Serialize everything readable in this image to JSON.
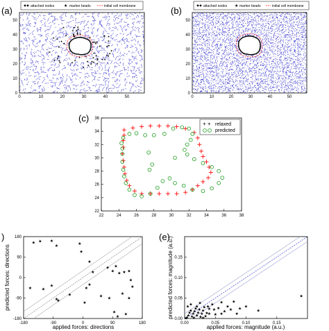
{
  "panels": {
    "a": {
      "label": "(a)",
      "legend": [
        "attached nodes",
        "marker beads",
        "initial cell membrane"
      ],
      "x_ticks": [
        "0",
        "10",
        "20",
        "30",
        "40",
        "50"
      ],
      "y_ticks": [
        "0",
        "10",
        "20",
        "30",
        "40",
        "50"
      ],
      "mesh_color": "#1515c8",
      "bead_color": "#1aa89a",
      "membrane_color": "#ff2020"
    },
    "b": {
      "label": "(b)",
      "legend": [
        "attached nodes",
        "marker beads",
        "initial cell membrane"
      ],
      "x_ticks": [
        "0",
        "10",
        "20",
        "30",
        "40",
        "50"
      ],
      "y_ticks": [
        "0",
        "10",
        "20",
        "30",
        "40",
        "50"
      ],
      "mesh_color": "#1515c8"
    },
    "c": {
      "label": "(c)"
    },
    "d": {
      "label": ")"
    },
    "e": {
      "label": "(e)"
    }
  },
  "chart_data": [
    {
      "panel": "c",
      "type": "scatter",
      "xlim": [
        22,
        38
      ],
      "ylim": [
        22,
        36
      ],
      "x_ticks": [
        "22",
        "24",
        "26",
        "28",
        "30",
        "32",
        "34",
        "36",
        "38"
      ],
      "y_ticks": [
        "22",
        "24",
        "26",
        "28",
        "30",
        "32",
        "34",
        "36"
      ],
      "legend_position": "top-right",
      "series": [
        {
          "name": "relaxed",
          "color": "#ff2020",
          "marker": "plus",
          "points": [
            [
              24.6,
              34.2
            ],
            [
              25.6,
              34.5
            ],
            [
              26.6,
              34.7
            ],
            [
              27.6,
              34.8
            ],
            [
              28.6,
              34.8
            ],
            [
              29.6,
              34.8
            ],
            [
              30.6,
              34.7
            ],
            [
              31.6,
              34.4
            ],
            [
              32.6,
              33.8
            ],
            [
              33.0,
              33.0
            ],
            [
              33.2,
              32.0
            ],
            [
              33.4,
              31.0
            ],
            [
              33.6,
              30.2
            ],
            [
              34.0,
              29.4
            ],
            [
              34.3,
              28.6
            ],
            [
              34.5,
              27.8
            ],
            [
              34.2,
              27.0
            ],
            [
              33.6,
              26.4
            ],
            [
              33.0,
              25.8
            ],
            [
              32.4,
              25.2
            ],
            [
              31.6,
              24.8
            ],
            [
              30.6,
              24.6
            ],
            [
              29.6,
              24.6
            ],
            [
              28.6,
              24.6
            ],
            [
              27.6,
              24.6
            ],
            [
              26.6,
              24.6
            ],
            [
              25.8,
              25.0
            ],
            [
              25.2,
              25.8
            ],
            [
              24.9,
              26.6
            ],
            [
              24.7,
              27.6
            ],
            [
              24.6,
              28.6
            ],
            [
              24.5,
              29.6
            ],
            [
              24.4,
              30.6
            ],
            [
              24.5,
              31.6
            ],
            [
              24.5,
              32.6
            ],
            [
              24.6,
              33.4
            ]
          ]
        },
        {
          "name": "predicted",
          "color": "#1a9a1a",
          "marker": "circle",
          "points": [
            [
              24.3,
              32.2
            ],
            [
              24.5,
              33.0
            ],
            [
              25.2,
              33.6
            ],
            [
              26.0,
              33.7
            ],
            [
              27.0,
              33.4
            ],
            [
              28.0,
              33.4
            ],
            [
              29.2,
              33.6
            ],
            [
              30.2,
              34.4
            ],
            [
              31.2,
              34.6
            ],
            [
              32.0,
              34.4
            ],
            [
              32.4,
              33.6
            ],
            [
              32.2,
              32.7
            ],
            [
              31.8,
              32.0
            ],
            [
              31.5,
              31.2
            ],
            [
              31.8,
              30.5
            ],
            [
              32.6,
              29.8
            ],
            [
              33.6,
              29.2
            ],
            [
              34.6,
              28.6
            ],
            [
              35.4,
              28.0
            ],
            [
              35.8,
              27.0
            ],
            [
              35.4,
              26.2
            ],
            [
              34.6,
              25.4
            ],
            [
              33.6,
              25.0
            ],
            [
              32.4,
              25.2
            ],
            [
              31.4,
              25.8
            ],
            [
              30.4,
              26.2
            ],
            [
              29.8,
              26.9
            ],
            [
              29.0,
              26.5
            ],
            [
              28.4,
              25.5
            ],
            [
              27.6,
              24.6
            ],
            [
              26.6,
              24.2
            ],
            [
              25.8,
              24.4
            ],
            [
              25.2,
              25.2
            ],
            [
              24.8,
              26.2
            ],
            [
              24.6,
              27.2
            ],
            [
              24.5,
              28.2
            ],
            [
              24.4,
              29.4
            ],
            [
              24.4,
              30.6
            ],
            [
              24.4,
              31.4
            ],
            [
              27.4,
              30.8
            ],
            [
              27.8,
              29.0
            ],
            [
              27.5,
              28.2
            ],
            [
              30.4,
              30.0
            ]
          ]
        }
      ]
    },
    {
      "panel": "d",
      "type": "scatter",
      "xlim": [
        -180,
        180
      ],
      "ylim": [
        -180,
        180
      ],
      "x_ticks": [
        "-180",
        "-90",
        "0",
        "90",
        "180"
      ],
      "y_ticks": [
        "-180",
        "-90",
        "0",
        "90",
        "180"
      ],
      "xlabel": "applied forces: directions",
      "ylabel": "predicted forces: directions",
      "points": [
        [
          -150,
          155
        ],
        [
          -130,
          160
        ],
        [
          -95,
          162
        ],
        [
          -80,
          140
        ],
        [
          -10,
          150
        ],
        [
          -5,
          115
        ],
        [
          20,
          70
        ],
        [
          -160,
          -45
        ],
        [
          -80,
          -95
        ],
        [
          -40,
          -75
        ],
        [
          -95,
          -35
        ],
        [
          -75,
          -100
        ],
        [
          -120,
          -50
        ],
        [
          30,
          25
        ],
        [
          55,
          -80
        ],
        [
          20,
          -30
        ],
        [
          10,
          -45
        ],
        [
          80,
          -90
        ],
        [
          90,
          30
        ],
        [
          110,
          20
        ],
        [
          125,
          25
        ],
        [
          140,
          30
        ],
        [
          145,
          -10
        ],
        [
          150,
          -40
        ],
        [
          120,
          -70
        ],
        [
          95,
          -150
        ],
        [
          105,
          -170
        ],
        [
          130,
          -160
        ],
        [
          140,
          -90
        ],
        [
          75,
          45
        ],
        [
          100,
          50
        ],
        [
          5,
          -110
        ]
      ]
    },
    {
      "panel": "e",
      "type": "scatter",
      "xlim": [
        0,
        0.2
      ],
      "ylim": [
        0,
        0.2
      ],
      "x_ticks": [
        "0.00",
        "0.05",
        "0.10",
        "0.15"
      ],
      "y_ticks": [
        "0.00",
        "0.05",
        "0.10",
        "0.15"
      ],
      "xlabel": "applied forces: magnitude (a.u.)",
      "ylabel": "predicted forces: magnitude (a.u.)",
      "points": [
        [
          0.002,
          0.001
        ],
        [
          0.004,
          0.003
        ],
        [
          0.006,
          0.008
        ],
        [
          0.008,
          0.015
        ],
        [
          0.01,
          0.02
        ],
        [
          0.012,
          0.005
        ],
        [
          0.014,
          0.012
        ],
        [
          0.016,
          0.018
        ],
        [
          0.018,
          0.025
        ],
        [
          0.02,
          0.008
        ],
        [
          0.022,
          0.015
        ],
        [
          0.024,
          0.022
        ],
        [
          0.026,
          0.004
        ],
        [
          0.028,
          0.012
        ],
        [
          0.03,
          0.02
        ],
        [
          0.032,
          0.028
        ],
        [
          0.034,
          0.006
        ],
        [
          0.036,
          0.014
        ],
        [
          0.038,
          0.03
        ],
        [
          0.04,
          0.012
        ],
        [
          0.045,
          0.035
        ],
        [
          0.048,
          0.022
        ],
        [
          0.05,
          0.01
        ],
        [
          0.055,
          0.026
        ],
        [
          0.06,
          0.04
        ],
        [
          0.065,
          0.018
        ],
        [
          0.07,
          0.03
        ],
        [
          0.075,
          0.022
        ],
        [
          0.08,
          0.042
        ],
        [
          0.085,
          0.012
        ],
        [
          0.09,
          0.025
        ],
        [
          0.1,
          0.03
        ],
        [
          0.12,
          0.02
        ],
        [
          0.19,
          0.055
        ],
        [
          0.005,
          0.03
        ],
        [
          0.01,
          0.035
        ],
        [
          0.015,
          0.002
        ],
        [
          0.02,
          0.03
        ],
        [
          0.025,
          0.038
        ],
        [
          0.03,
          0.002
        ],
        [
          0.04,
          0.024
        ],
        [
          0.06,
          0.012
        ]
      ]
    }
  ]
}
